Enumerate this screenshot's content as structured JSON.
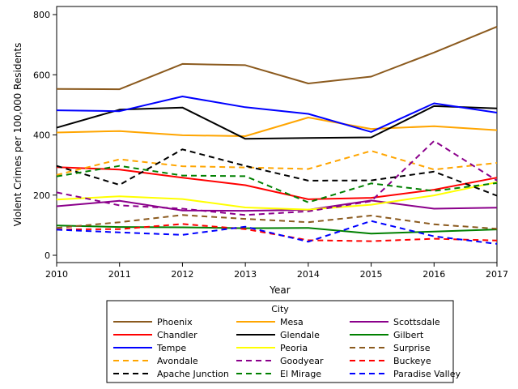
{
  "chart_data": {
    "type": "line",
    "xlabel": "Year",
    "ylabel": "Violent Crimes per 100,000 Residents",
    "x": [
      2010,
      2011,
      2012,
      2013,
      2014,
      2015,
      2016,
      2017
    ],
    "xlim": [
      2010,
      2017
    ],
    "ylim": [
      0,
      800
    ],
    "yticks": [
      0,
      200,
      400,
      600,
      800
    ],
    "grid": false,
    "legend_title": "City",
    "legend_position": "bottom",
    "series": [
      {
        "name": "Phoenix",
        "color": "#8B5A1E",
        "dash": "solid",
        "values": [
          553,
          552,
          636,
          632,
          571,
          594,
          674,
          760
        ]
      },
      {
        "name": "Mesa",
        "color": "#FFA500",
        "dash": "solid",
        "values": [
          408,
          413,
          399,
          396,
          458,
          420,
          429,
          416
        ]
      },
      {
        "name": "Scottsdale",
        "color": "#8B008B",
        "dash": "solid",
        "values": [
          163,
          181,
          149,
          148,
          151,
          182,
          155,
          158
        ]
      },
      {
        "name": "Chandler",
        "color": "#FF0000",
        "dash": "solid",
        "values": [
          293,
          285,
          258,
          233,
          186,
          191,
          218,
          258
        ]
      },
      {
        "name": "Glendale",
        "color": "#000000",
        "dash": "solid",
        "values": [
          424,
          484,
          491,
          387,
          390,
          392,
          496,
          488
        ]
      },
      {
        "name": "Gilbert",
        "color": "#008000",
        "dash": "solid",
        "values": [
          99,
          94,
          93,
          90,
          91,
          72,
          79,
          86
        ]
      },
      {
        "name": "Tempe",
        "color": "#0000FF",
        "dash": "solid",
        "values": [
          482,
          479,
          528,
          492,
          470,
          410,
          505,
          474
        ]
      },
      {
        "name": "Peoria",
        "color": "#FFFF00",
        "dash": "solid",
        "values": [
          185,
          196,
          187,
          159,
          152,
          168,
          199,
          243
        ]
      },
      {
        "name": "Surprise",
        "color": "#8B5A1E",
        "dash": "dashed",
        "values": [
          91,
          110,
          134,
          121,
          110,
          132,
          103,
          88
        ]
      },
      {
        "name": "Avondale",
        "color": "#FFA500",
        "dash": "dashed",
        "values": [
          267,
          319,
          296,
          292,
          287,
          347,
          285,
          307
        ]
      },
      {
        "name": "Goodyear",
        "color": "#8B008B",
        "dash": "dashed",
        "values": [
          209,
          166,
          155,
          134,
          146,
          180,
          380,
          248
        ]
      },
      {
        "name": "Buckeye",
        "color": "#FF0000",
        "dash": "dashed",
        "values": [
          86,
          87,
          104,
          87,
          50,
          47,
          55,
          49
        ]
      },
      {
        "name": "Apache Junction",
        "color": "#000000",
        "dash": "dashed",
        "values": [
          297,
          234,
          352,
          297,
          248,
          249,
          278,
          198
        ]
      },
      {
        "name": "El Mirage",
        "color": "#008000",
        "dash": "dashed",
        "values": [
          262,
          297,
          265,
          263,
          176,
          239,
          214,
          240
        ]
      },
      {
        "name": "Paradise Valley",
        "color": "#0000FF",
        "dash": "dashed",
        "values": [
          85,
          76,
          68,
          95,
          45,
          114,
          63,
          38
        ]
      }
    ]
  }
}
